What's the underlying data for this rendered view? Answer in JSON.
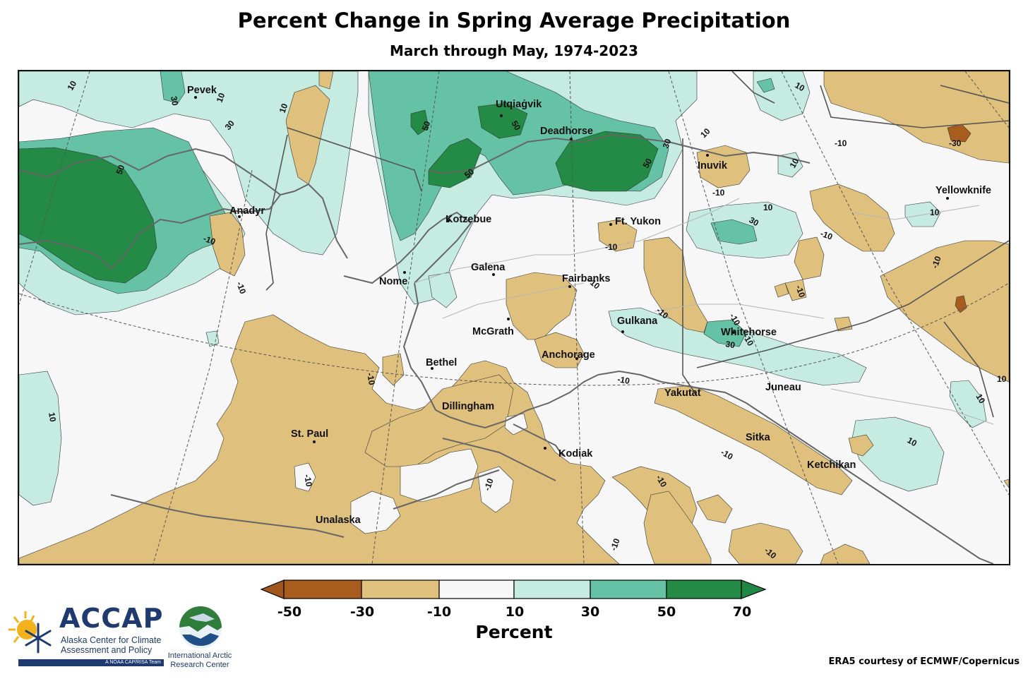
{
  "title": "Percent Change in Spring Average Precipitation",
  "subtitle": "March through May, 1974-2023",
  "colorbar": {
    "title": "Percent",
    "ticks": [
      "-50",
      "-30",
      "-10",
      "10",
      "30",
      "50",
      "70"
    ],
    "bins": [
      {
        "range": "<-50",
        "color": "#a0561d"
      },
      {
        "range": "-50 to -30",
        "color": "#a85d1f"
      },
      {
        "range": "-30 to -10",
        "color": "#dfc07d"
      },
      {
        "range": "-10 to 10",
        "color": "#f7f7f7"
      },
      {
        "range": "10 to 30",
        "color": "#c6ebe1"
      },
      {
        "range": "30 to 50",
        "color": "#66c2a4"
      },
      {
        "range": "50 to 70",
        "color": "#238b45"
      },
      {
        "range": ">70",
        "color": "#1e8744"
      }
    ]
  },
  "places": [
    "Pevek",
    "Utqiaġvik",
    "Deadhorse",
    "Inuvik",
    "Yellowknife",
    "Anadyr",
    "Kotzebue",
    "Ft. Yukon",
    "Nome",
    "Galena",
    "Fairbanks",
    "McGrath",
    "Gulkana",
    "Whitehorse",
    "Anchorage",
    "Bethel",
    "Yakutat",
    "Juneau",
    "Dillingham",
    "St. Paul",
    "Sitka",
    "Kodiak",
    "Ketchikan",
    "Unalaska"
  ],
  "contour_labels": [
    "10",
    "30",
    "50",
    "-10",
    "-30"
  ],
  "credit": "ERA5 courtesy of ECMWF/Copernicus",
  "logos": {
    "accap_name": "ACCAP",
    "accap_sub1": "Alaska Center for Climate",
    "accap_sub2": "Assessment and Policy",
    "accap_tag": "A NOAA CAP/RISA Team",
    "iarc_line1": "International Arctic",
    "iarc_line2": "Research Center"
  }
}
